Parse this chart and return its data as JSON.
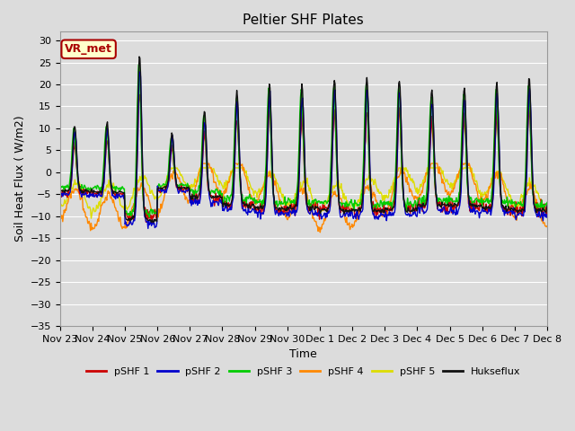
{
  "title": "Peltier SHF Plates",
  "xlabel": "Time",
  "ylabel": "Soil Heat Flux (W/m2)",
  "ylim": [
    -35,
    32
  ],
  "xlim": [
    0,
    15
  ],
  "plot_background": "#dcdcdc",
  "fig_background": "#dcdcdc",
  "grid_color": "#ffffff",
  "series_colors": {
    "pSHF 1": "#cc0000",
    "pSHF 2": "#0000cc",
    "pSHF 3": "#00cc00",
    "pSHF 4": "#ff8800",
    "pSHF 5": "#dddd00",
    "Hukseflux": "#111111"
  },
  "xtick_labels": [
    "Nov 23",
    "Nov 24",
    "Nov 25",
    "Nov 26",
    "Nov 27",
    "Nov 28",
    "Nov 29",
    "Nov 30",
    "Dec 1",
    "Dec 2",
    "Dec 3",
    "Dec 4",
    "Dec 5",
    "Dec 6",
    "Dec 7",
    "Dec 8"
  ],
  "ytick_values": [
    -35,
    -30,
    -25,
    -20,
    -15,
    -10,
    -5,
    0,
    5,
    10,
    15,
    20,
    25,
    30
  ],
  "annotation_text": "VR_met",
  "annotation_color": "#aa0000",
  "annotation_bg": "#ffffcc",
  "annotation_border": "#aa0000"
}
